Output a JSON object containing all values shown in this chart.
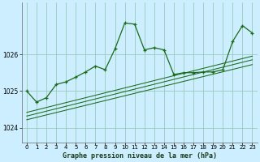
{
  "title": "Graphe pression niveau de la mer (hPa)",
  "bg_color": "#cceeff",
  "grid_color": "#99ccbb",
  "line_color": "#1a6b1a",
  "xlim": [
    -0.5,
    23.5
  ],
  "ylim": [
    1023.6,
    1027.4
  ],
  "yticks": [
    1024,
    1025,
    1026
  ],
  "xticks": [
    0,
    1,
    2,
    3,
    4,
    5,
    6,
    7,
    8,
    9,
    10,
    11,
    12,
    13,
    14,
    15,
    16,
    17,
    18,
    19,
    20,
    21,
    22,
    23
  ],
  "main_series_x": [
    0,
    1,
    2,
    3,
    4,
    5,
    6,
    7,
    8,
    9,
    10,
    11,
    12,
    13,
    14,
    15,
    16,
    17,
    18,
    19,
    20,
    21,
    22,
    23
  ],
  "main_series_y": [
    1025.0,
    1024.7,
    1024.82,
    1025.18,
    1025.25,
    1025.38,
    1025.52,
    1025.68,
    1025.58,
    1026.15,
    1026.85,
    1026.82,
    1026.12,
    1026.18,
    1026.12,
    1025.45,
    1025.5,
    1025.5,
    1025.52,
    1025.52,
    1025.58,
    1026.35,
    1026.78,
    1026.58
  ],
  "trend_line1_x": [
    0,
    23
  ],
  "trend_line1_y": [
    1024.22,
    1025.72
  ],
  "trend_line2_x": [
    0,
    23
  ],
  "trend_line2_y": [
    1024.32,
    1025.85
  ],
  "trend_line3_x": [
    0,
    23
  ],
  "trend_line3_y": [
    1024.42,
    1025.95
  ]
}
